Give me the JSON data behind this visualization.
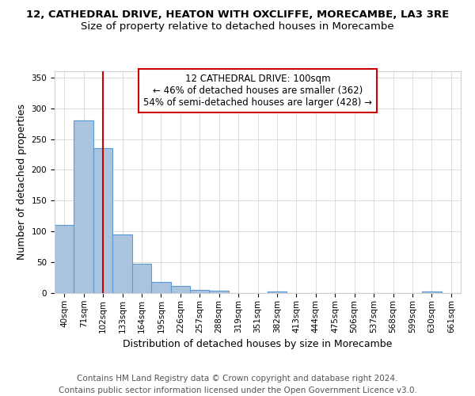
{
  "title": "12, CATHEDRAL DRIVE, HEATON WITH OXCLIFFE, MORECAMBE, LA3 3RE",
  "subtitle": "Size of property relative to detached houses in Morecambe",
  "xlabel": "Distribution of detached houses by size in Morecambe",
  "ylabel": "Number of detached properties",
  "footer1": "Contains HM Land Registry data © Crown copyright and database right 2024.",
  "footer2": "Contains public sector information licensed under the Open Government Licence v3.0.",
  "categories": [
    "40sqm",
    "71sqm",
    "102sqm",
    "133sqm",
    "164sqm",
    "195sqm",
    "226sqm",
    "257sqm",
    "288sqm",
    "319sqm",
    "351sqm",
    "382sqm",
    "413sqm",
    "444sqm",
    "475sqm",
    "506sqm",
    "537sqm",
    "568sqm",
    "599sqm",
    "630sqm",
    "661sqm"
  ],
  "values": [
    110,
    280,
    235,
    95,
    48,
    18,
    12,
    5,
    4,
    0,
    0,
    3,
    0,
    0,
    0,
    0,
    0,
    0,
    0,
    3,
    0
  ],
  "bar_color": "#aac4e0",
  "bar_edge_color": "#5b9bd5",
  "vline_x_index": 2,
  "vline_color": "#cc0000",
  "annotation_line1": "12 CATHEDRAL DRIVE: 100sqm",
  "annotation_line2": "← 46% of detached houses are smaller (362)",
  "annotation_line3": "54% of semi-detached houses are larger (428) →",
  "annotation_box_edgecolor": "#cc0000",
  "ylim": [
    0,
    360
  ],
  "yticks": [
    0,
    50,
    100,
    150,
    200,
    250,
    300,
    350
  ],
  "background_color": "#ffffff",
  "grid_color": "#d0d0d0",
  "title_fontsize": 9.5,
  "subtitle_fontsize": 9.5,
  "axis_label_fontsize": 9,
  "tick_fontsize": 7.5,
  "annotation_fontsize": 8.5,
  "footer_fontsize": 7.5
}
